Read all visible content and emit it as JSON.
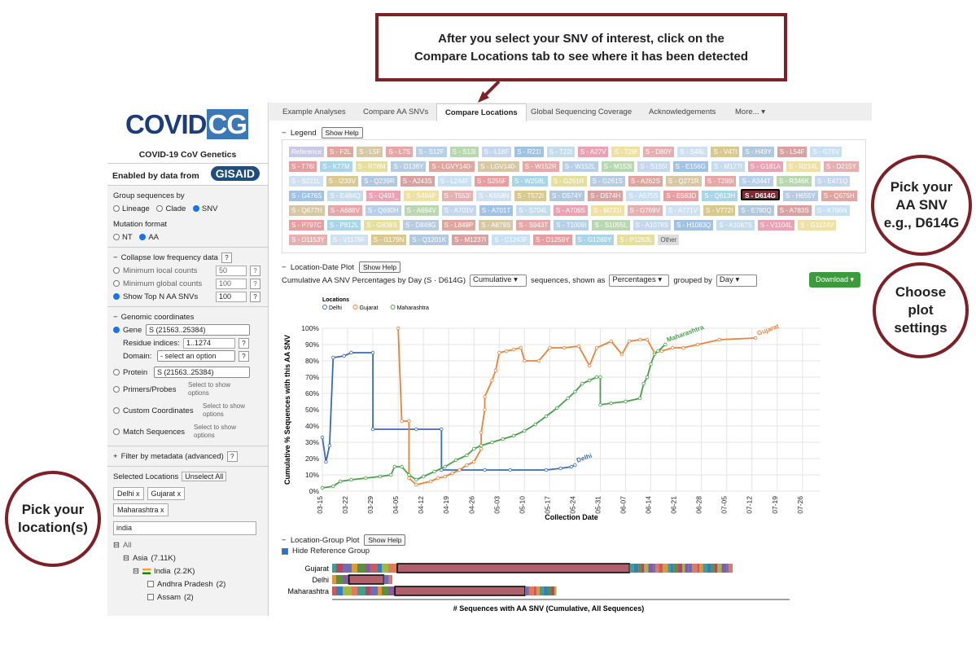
{
  "callouts": {
    "top_line1": "After you select your SNV of interest, click on the",
    "top_line2": "Compare Locations tab to see where it has been detected",
    "snv_line1": "Pick your",
    "snv_line2": "AA SNV",
    "snv_line3": "e.g., D614G",
    "plot_line1": "Choose",
    "plot_line2": "plot",
    "plot_line3": "settings",
    "loc_line1": "Pick your",
    "loc_line2": "location(s)"
  },
  "sidebar": {
    "logo": "COVID",
    "logo_cg": "CG",
    "subtitle": "COVID-19 CoV Genetics",
    "enabled_by": "Enabled by data from",
    "gisaid": "GISAID",
    "group_label": "Group sequences by",
    "group_options": [
      "Lineage",
      "Clade",
      "SNV"
    ],
    "mutation_label": "Mutation format",
    "mutation_options": [
      "NT",
      "AA"
    ],
    "collapse_label": "Collapse low frequency data",
    "min_local_label": "Minimum local counts",
    "min_local_value": "50",
    "min_global_label": "Minimum global counts",
    "min_global_value": "100",
    "topn_label": "Show Top N AA SNVs",
    "topn_value": "100",
    "genomic_label": "Genomic coordinates",
    "gene_label": "Gene",
    "gene_value": "S  (21563..25384)",
    "residue_label": "Residue indices:",
    "residue_value": "1..1274",
    "domain_label": "Domain:",
    "domain_value": "- select an option",
    "protein_label": "Protein",
    "protein_value": "S  (21563..25384)",
    "primers_label": "Primers/Probes",
    "custom_label": "Custom Coordinates",
    "match_label": "Match Sequences",
    "select_hint_1": "Select to show",
    "select_hint_2": "options",
    "filter_label": "Filter by metadata (advanced)",
    "selected_label": "Selected Locations",
    "unselect_all": "Unselect All",
    "selected_tags": [
      "Delhi",
      "Gujarat",
      "Maharashtra"
    ],
    "search_value": "india",
    "tree_all": "All",
    "tree_asia": "Asia",
    "tree_asia_count": "(7.11K)",
    "tree_india": "India",
    "tree_india_count": "(2.2K)",
    "tree_andhra": "Andhra Pradesh",
    "tree_andhra_count": "(2)",
    "tree_assam": "Assam",
    "tree_assam_count": "(2)"
  },
  "tabs": [
    "Example Analyses",
    "Compare AA SNVs",
    "Compare Locations",
    "Global Sequencing Coverage",
    "Acknowledgements",
    "More..."
  ],
  "legend": {
    "title": "Legend",
    "show_help": "Show Help",
    "items": [
      "Reference",
      "S - F2L",
      "S - L5F",
      "S - L7S",
      "S - S12F",
      "S - S13I",
      "S - L18F",
      "S - R21I",
      "S - T22I",
      "S - A27V",
      "S - T29I",
      "S - D80Y",
      "S - S46L",
      "S - V47I",
      "S - H49Y",
      "S - L54F",
      "S - G75V",
      "S - T76I",
      "S - K77M",
      "S - R78M",
      "S - D138Y",
      "S - LGVY140-",
      "S - LGV140-",
      "S - W152R",
      "S - W152L",
      "S - M153I",
      "S - S155I",
      "S - E156G",
      "S - M177I",
      "S - G181A",
      "S - R214L",
      "S - D215Y",
      "S - S221L",
      "S - I233V",
      "S - Q239R",
      "S - A243S",
      "S - L244F",
      "S - S255F",
      "S - W258L",
      "S - G261R",
      "S - G261S",
      "S - A262S",
      "S - Q271R",
      "S - T299I",
      "S - A344T",
      "S - R346K",
      "S - E471Q",
      "S - G476S",
      "S - E484Q",
      "S - Q493_",
      "S - S494P",
      "S - T553I",
      "S - K558N",
      "S - T572I",
      "S - D574Y",
      "S - D574H",
      "S - A575S",
      "S - E583D",
      "S - Q613H",
      "S - D614G",
      "S - H655Y",
      "S - Q675H",
      "S - Q677H",
      "S - A688V",
      "S - Q690H",
      "S - A694V",
      "S - A701V",
      "S - A701T",
      "S - S704L",
      "S - A706S",
      "S - M731I",
      "S - G769V",
      "S - A771V",
      "S - V772I",
      "S - E780Q",
      "S - A783S",
      "S - K786N",
      "S - P797C",
      "S - P812L",
      "S - G838S",
      "S - D848G",
      "S - L849P",
      "S - A879S",
      "S - S943T",
      "S - T1009I",
      "S - S1055L",
      "S - A1078S",
      "S - H1083Q",
      "S - A1087S",
      "S - V1104L",
      "S - G1124V",
      "S - D1153Y",
      "S - V1176F",
      "S - I1179N",
      "S - Q1201K",
      "S - M1237I",
      "S - C1243F",
      "S - D1259Y",
      "S - G1260Y",
      "S - P1263L",
      "Other"
    ],
    "selected": "S - D614G"
  },
  "location_date_plot": {
    "title": "Location-Date Plot",
    "show_help": "Show Help",
    "ctrl_prefix": "Cumulative AA SNV Percentages by Day (S · D614G)",
    "cumulative_value": "Cumulative",
    "ctrl_mid": "sequences, shown as",
    "percent_value": "Percentages",
    "ctrl_grouped": "grouped by",
    "group_value": "Day",
    "download": "Download"
  },
  "location_group_plot": {
    "title": "Location-Group Plot",
    "show_help": "Show Help",
    "hide_ref": "Hide Reference Group",
    "xlabel": "# Sequences with AA SNV (Cumulative, All Sequences)",
    "rows": [
      {
        "label": "Gujarat",
        "value": 1.0
      },
      {
        "label": "Delhi",
        "value": 0.15
      },
      {
        "label": "Maharashtra",
        "value": 0.56
      }
    ]
  },
  "colors": {
    "accent_dark_red": "#7d2027",
    "delhi": "#3b6bb5",
    "gujarat": "#e8833a",
    "maharashtra": "#4aa04a",
    "selected_snv": "#7d2e35"
  },
  "chart_data": {
    "type": "line",
    "ylabel": "Cumulative % Sequences with this AA SNV",
    "xlabel": "Collection Date",
    "legend_title": "Locations",
    "x_ticks": [
      "03-15",
      "03-22",
      "03-29",
      "04-05",
      "04-12",
      "04-19",
      "04-26",
      "05-03",
      "05-10",
      "05-17",
      "05-24",
      "05-31",
      "06-07",
      "06-14",
      "06-21",
      "06-28",
      "07-05",
      "07-12",
      "07-19",
      "07-26"
    ],
    "y_ticks": [
      "0%",
      "10%",
      "20%",
      "30%",
      "40%",
      "50%",
      "60%",
      "70%",
      "80%",
      "90%",
      "100%"
    ],
    "ylim": [
      0,
      100
    ],
    "series": [
      {
        "name": "Delhi",
        "points": [
          [
            0,
            33
          ],
          [
            1,
            18
          ],
          [
            2,
            28
          ],
          [
            3,
            82
          ],
          [
            6,
            83
          ],
          [
            8,
            85
          ],
          [
            14,
            85
          ],
          [
            14,
            38
          ],
          [
            26,
            38
          ],
          [
            33,
            38
          ],
          [
            33,
            13
          ],
          [
            45,
            13
          ],
          [
            52,
            13
          ],
          [
            62,
            13
          ],
          [
            66,
            14
          ],
          [
            69,
            15
          ],
          [
            70,
            16
          ]
        ]
      },
      {
        "name": "Gujarat",
        "points": [
          [
            21,
            100
          ],
          [
            22,
            43
          ],
          [
            24,
            43
          ],
          [
            24,
            8
          ],
          [
            26,
            4
          ],
          [
            30,
            6
          ],
          [
            32,
            8
          ],
          [
            34,
            9
          ],
          [
            36,
            11
          ],
          [
            38,
            13
          ],
          [
            40,
            16
          ],
          [
            42,
            18
          ],
          [
            44,
            26
          ],
          [
            44,
            36
          ],
          [
            45,
            50
          ],
          [
            45,
            58
          ],
          [
            47,
            68
          ],
          [
            48,
            74
          ],
          [
            49,
            85
          ],
          [
            51,
            86
          ],
          [
            53,
            87
          ],
          [
            55,
            88
          ],
          [
            56,
            80
          ],
          [
            60,
            80
          ],
          [
            63,
            88
          ],
          [
            67,
            88
          ],
          [
            71,
            89
          ],
          [
            74,
            77
          ],
          [
            76,
            88
          ],
          [
            80,
            92
          ],
          [
            83,
            84
          ],
          [
            85,
            92
          ],
          [
            88,
            93
          ],
          [
            90,
            93
          ],
          [
            92,
            85
          ],
          [
            94,
            86
          ],
          [
            97,
            88
          ],
          [
            100,
            88
          ],
          [
            104,
            90
          ],
          [
            110,
            93
          ],
          [
            120,
            94
          ]
        ]
      },
      {
        "name": "Maharashtra",
        "points": [
          [
            0,
            2
          ],
          [
            3,
            3
          ],
          [
            5,
            6
          ],
          [
            8,
            7
          ],
          [
            12,
            8
          ],
          [
            16,
            9
          ],
          [
            19,
            10
          ],
          [
            20,
            15
          ],
          [
            22,
            15
          ],
          [
            24,
            10
          ],
          [
            26,
            7
          ],
          [
            28,
            9
          ],
          [
            31,
            12
          ],
          [
            34,
            15
          ],
          [
            37,
            19
          ],
          [
            40,
            22
          ],
          [
            42,
            26
          ],
          [
            44,
            28
          ],
          [
            47,
            30
          ],
          [
            50,
            32
          ],
          [
            53,
            34
          ],
          [
            56,
            37
          ],
          [
            59,
            41
          ],
          [
            62,
            46
          ],
          [
            65,
            51
          ],
          [
            68,
            57
          ],
          [
            70,
            61
          ],
          [
            72,
            66
          ],
          [
            74,
            68
          ],
          [
            76,
            70
          ],
          [
            77,
            70
          ],
          [
            77,
            53
          ],
          [
            80,
            54
          ],
          [
            84,
            55
          ],
          [
            88,
            57
          ],
          [
            89,
            66
          ],
          [
            90,
            70
          ],
          [
            91,
            78
          ],
          [
            92,
            84
          ],
          [
            93,
            86
          ],
          [
            95,
            90
          ]
        ]
      }
    ]
  }
}
